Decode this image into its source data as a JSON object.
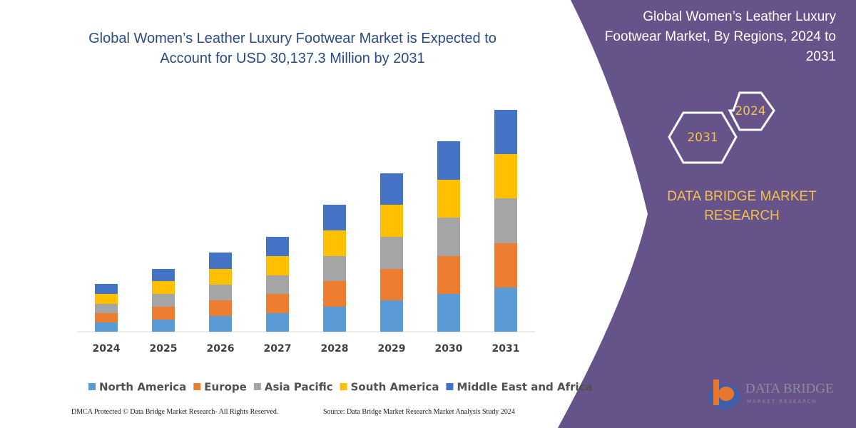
{
  "chart_data": {
    "type": "bar",
    "stacked": true,
    "title": "Global Women’s Leather Luxury Footwear Market is Expected to Account for USD 30,137.3 Million by 2031",
    "categories": [
      "2024",
      "2025",
      "2026",
      "2027",
      "2028",
      "2029",
      "2030",
      "2031"
    ],
    "series": [
      {
        "name": "North America",
        "color": "#5b9bd5",
        "values": [
          13,
          17,
          22,
          26,
          35,
          44,
          53,
          62
        ]
      },
      {
        "name": "Europe",
        "color": "#ed7d31",
        "values": [
          13,
          18,
          22,
          27,
          36,
          44,
          53,
          62
        ]
      },
      {
        "name": "Asia Pacific",
        "color": "#a5a5a5",
        "values": [
          13,
          18,
          22,
          26,
          35,
          45,
          54,
          63
        ]
      },
      {
        "name": "South America",
        "color": "#ffc000",
        "values": [
          14,
          18,
          22,
          27,
          36,
          45,
          53,
          62
        ]
      },
      {
        "name": "Middle East and Africa",
        "color": "#4472c4",
        "values": [
          14,
          17,
          23,
          27,
          36,
          44,
          54,
          62
        ]
      }
    ]
  },
  "side_panel": {
    "title": "Global Women’s Leather Luxury Footwear Market, By Regions, 2024 to 2031",
    "hexagons": [
      "2024",
      "2031"
    ],
    "brand": "DATA BRIDGE MARKET RESEARCH"
  },
  "logo": {
    "name": "DATA BRIDGE",
    "tagline": "MARKET RESEARCH"
  },
  "footer": {
    "left": "DMCA Protected © Data Bridge Market Research-  All Rights Reserved.",
    "right": "Source: Data Bridge Market Research  Market Analysis Study 2024"
  }
}
